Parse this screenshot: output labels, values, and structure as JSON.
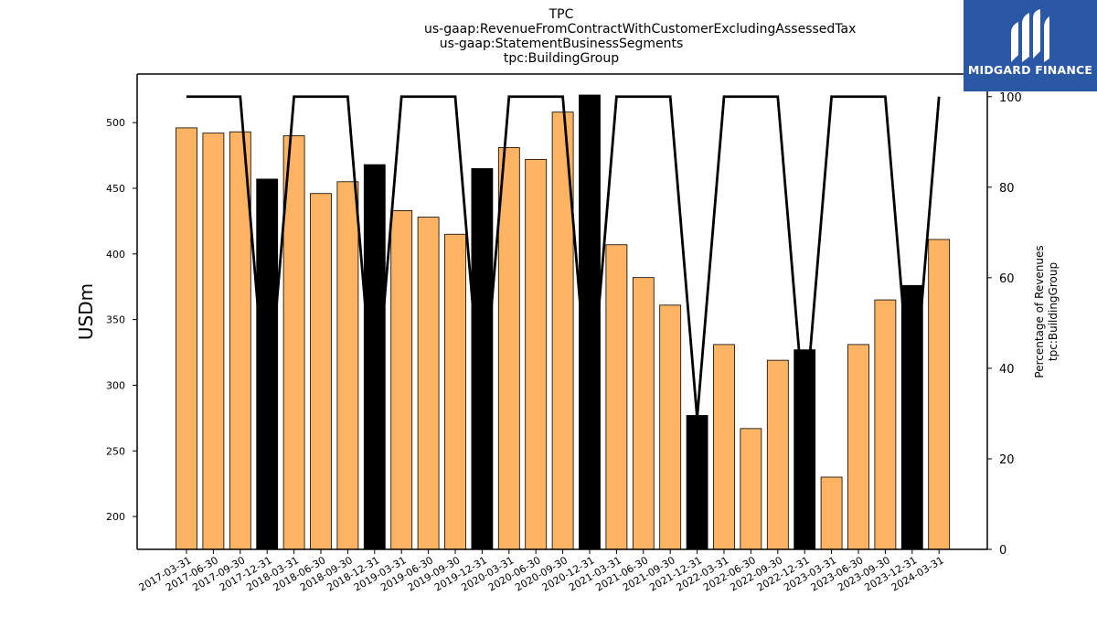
{
  "titles": [
    "TPC",
    "us-gaap:RevenueFromContractWithCustomerExcludingAssessedTax",
    "us-gaap:StatementBusinessSegments",
    "tpc:BuildingGroup"
  ],
  "logo": {
    "text": "MIDGARD FINANCE",
    "background": "#2b58a5"
  },
  "chart_data": {
    "type": "bar",
    "ylabel": "USDm",
    "y2label_lines": [
      "Percentage of Revenues",
      "tpc:BuildingGroup"
    ],
    "ylim": [
      175,
      537
    ],
    "y2lim": [
      0,
      105
    ],
    "yticks": [
      200,
      250,
      300,
      350,
      400,
      450,
      500
    ],
    "y2ticks": [
      0,
      20,
      40,
      60,
      80,
      100
    ],
    "grid": false,
    "colors": {
      "quarter": "#fdb462",
      "year_end": "#000000",
      "line": "#000000"
    },
    "categories": [
      "2017-03-31",
      "2017-06-30",
      "2017-09-30",
      "2017-12-31",
      "2018-03-31",
      "2018-06-30",
      "2018-09-30",
      "2018-12-31",
      "2019-03-31",
      "2019-06-30",
      "2019-09-30",
      "2019-12-31",
      "2020-03-31",
      "2020-06-30",
      "2020-09-30",
      "2020-12-31",
      "2021-03-31",
      "2021-06-30",
      "2021-09-30",
      "2021-12-31",
      "2022-03-31",
      "2022-06-30",
      "2022-09-30",
      "2022-12-31",
      "2023-03-31",
      "2023-06-30",
      "2023-09-30",
      "2023-12-31",
      "2024-03-31"
    ],
    "values": [
      496,
      492,
      493,
      457,
      490,
      446,
      455,
      468,
      433,
      428,
      415,
      465,
      481,
      472,
      508,
      521,
      407,
      382,
      361,
      277,
      331,
      267,
      319,
      327,
      230,
      331,
      365,
      376,
      411
    ],
    "bar_kind": [
      "q",
      "q",
      "q",
      "y",
      "q",
      "q",
      "q",
      "y",
      "q",
      "q",
      "q",
      "y",
      "q",
      "q",
      "q",
      "y",
      "q",
      "q",
      "q",
      "y",
      "q",
      "q",
      "q",
      "y",
      "q",
      "q",
      "q",
      "y",
      "q"
    ],
    "line_values": [
      100,
      100,
      100,
      29,
      100,
      100,
      100,
      29,
      100,
      100,
      100,
      29,
      100,
      100,
      100,
      29,
      100,
      100,
      100,
      29,
      100,
      100,
      100,
      29,
      100,
      100,
      100,
      29,
      100
    ]
  }
}
